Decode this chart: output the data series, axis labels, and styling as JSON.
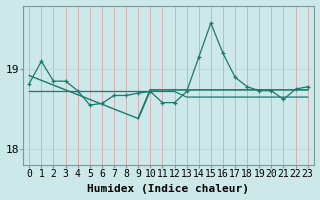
{
  "xlabel": "Humidex (Indice chaleur)",
  "background_color": "#cce8e8",
  "line_color": "#1a7a6e",
  "grid_color_h": "#b8d8d0",
  "grid_color_v": "#d4a8a8",
  "x_values": [
    0,
    1,
    2,
    3,
    4,
    5,
    6,
    7,
    8,
    9,
    10,
    11,
    12,
    13,
    14,
    15,
    16,
    17,
    18,
    19,
    20,
    21,
    22,
    23
  ],
  "y_main": [
    18.82,
    19.1,
    18.85,
    18.85,
    18.73,
    18.55,
    18.57,
    18.67,
    18.67,
    18.7,
    18.72,
    18.58,
    18.58,
    18.72,
    19.15,
    19.58,
    19.2,
    18.9,
    18.78,
    18.73,
    18.73,
    18.62,
    18.75,
    18.78
  ],
  "y_trend_diag": [
    18.92,
    18.86,
    18.8,
    18.74,
    18.68,
    18.62,
    18.56,
    18.5,
    18.44,
    18.38,
    18.74,
    18.74,
    18.74,
    18.74,
    18.74,
    18.74,
    18.74,
    18.74,
    18.74,
    18.74,
    18.74,
    18.74,
    18.74,
    18.74
  ],
  "y_trend_flat": [
    18.72,
    18.72,
    18.72,
    18.72,
    18.72,
    18.72,
    18.72,
    18.72,
    18.72,
    18.72,
    18.72,
    18.72,
    18.72,
    18.65,
    18.65,
    18.65,
    18.65,
    18.65,
    18.65,
    18.65,
    18.65,
    18.65,
    18.65,
    18.65
  ],
  "ylim": [
    17.8,
    19.8
  ],
  "yticks": [
    18.0,
    19.0
  ],
  "ytick_labels": [
    "18",
    "19"
  ],
  "xticks": [
    0,
    1,
    2,
    3,
    4,
    5,
    6,
    7,
    8,
    9,
    10,
    11,
    12,
    13,
    14,
    15,
    16,
    17,
    18,
    19,
    20,
    21,
    22,
    23
  ],
  "fontsize_tick": 7,
  "fontsize_label": 8
}
